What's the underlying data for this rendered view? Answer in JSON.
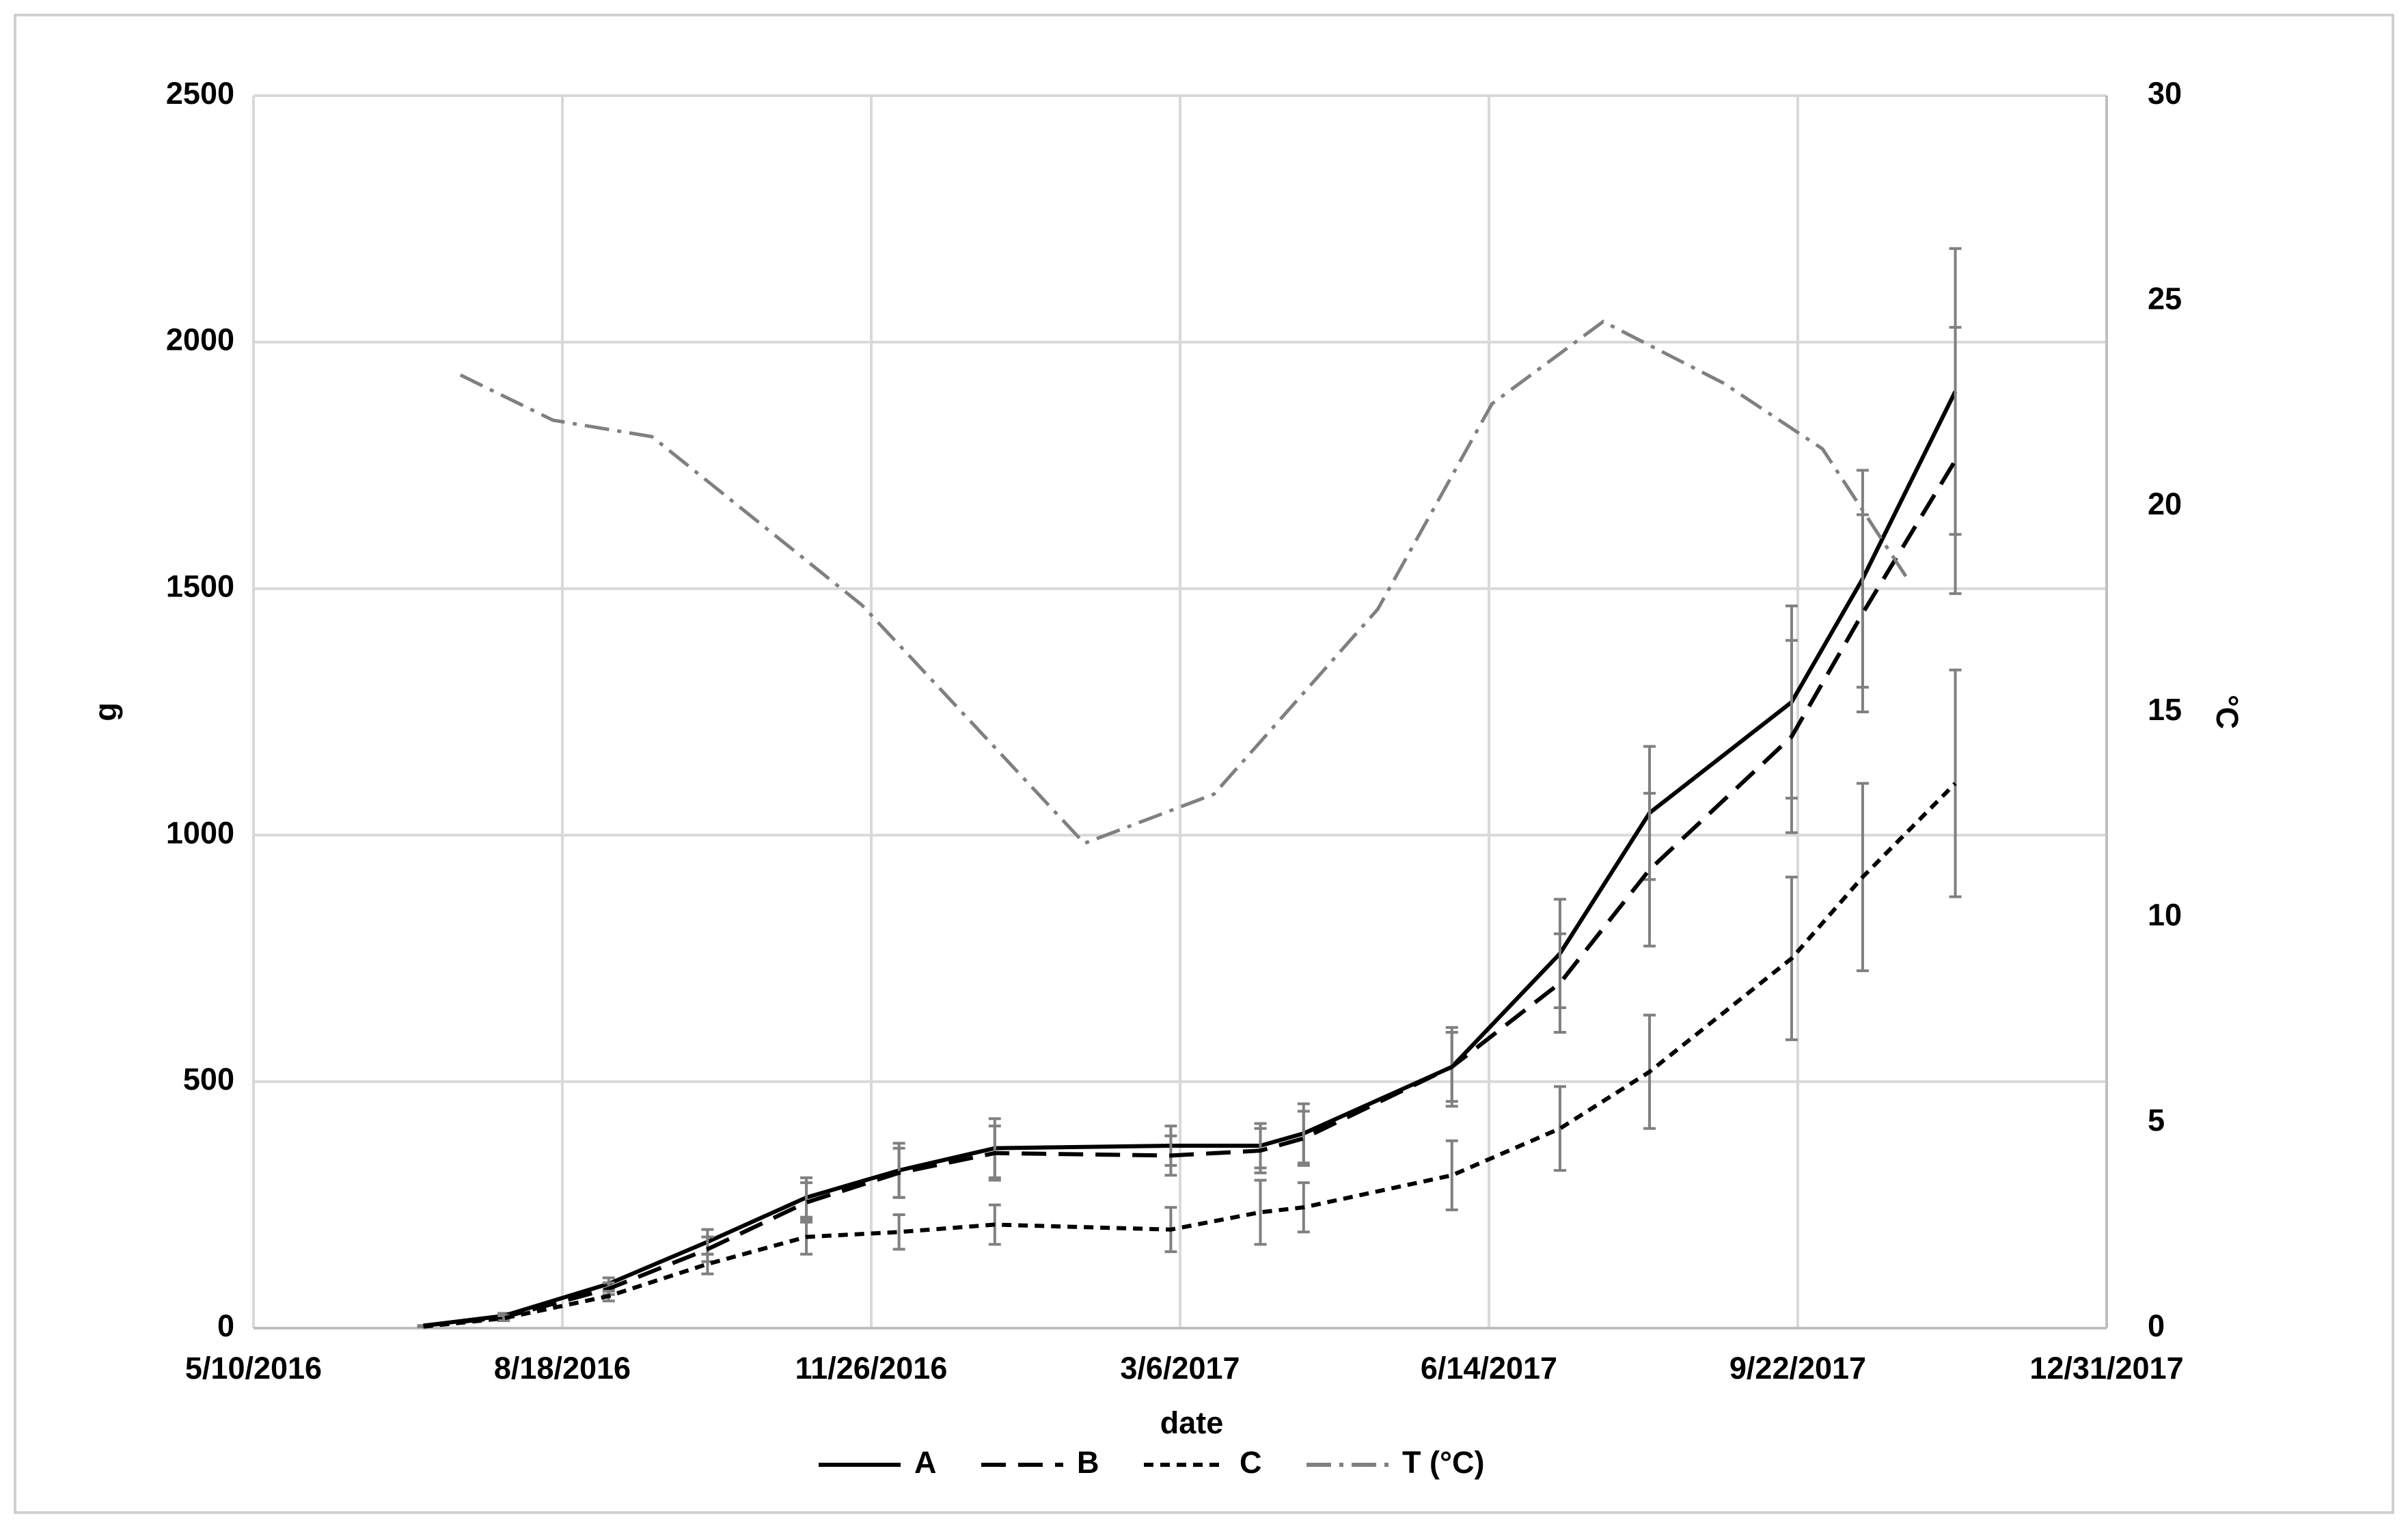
{
  "chart_data": {
    "type": "line",
    "x_label": "date",
    "y_label": "g",
    "y2_label": "°C",
    "x": [
      "7/4/2016",
      "7/30/2016",
      "9/2/2016",
      "10/4/2016",
      "11/5/2016",
      "12/5/2016",
      "1/5/2017",
      "3/3/2017",
      "4/1/2017",
      "4/15/2017",
      "6/2/2017",
      "7/7/2017",
      "8/5/2017",
      "9/20/2017",
      "10/13/2017",
      "11/12/2017"
    ],
    "series": [
      {
        "name": "A",
        "color": "#000000",
        "dash": "solid",
        "values": [
          5,
          25,
          90,
          175,
          265,
          320,
          365,
          370,
          370,
          395,
          530,
          760,
          1045,
          1270,
          1520,
          1900
        ],
        "errors": [
          0,
          5,
          12,
          25,
          40,
          55,
          60,
          40,
          45,
          60,
          80,
          110,
          135,
          195,
          220,
          290
        ]
      },
      {
        "name": "B",
        "color": "#000000",
        "dash": "long",
        "values": [
          5,
          22,
          80,
          160,
          255,
          315,
          355,
          350,
          360,
          385,
          530,
          700,
          930,
          1200,
          1450,
          1760
        ],
        "errors": [
          0,
          5,
          12,
          25,
          40,
          50,
          55,
          40,
          45,
          55,
          70,
          100,
          155,
          195,
          200,
          270
        ]
      },
      {
        "name": "C",
        "color": "#000000",
        "dash": "short",
        "values": [
          3,
          20,
          65,
          130,
          185,
          195,
          210,
          200,
          235,
          245,
          310,
          405,
          520,
          750,
          915,
          1105
        ],
        "errors": [
          0,
          5,
          10,
          20,
          35,
          35,
          40,
          45,
          65,
          50,
          70,
          85,
          115,
          165,
          190,
          230
        ]
      },
      {
        "name": "T (°C)",
        "color": "#808080",
        "dash": "dashdot",
        "axis": "y2",
        "x": [
          "7/16/2016",
          "8/15/2016",
          "9/16/2016",
          "11/23/2016",
          "2/3/2017",
          "3/17/2017",
          "5/9/2017",
          "6/15/2017",
          "7/21/2017",
          "8/29/2017",
          "9/30/2017",
          "10/27/2017"
        ],
        "values": [
          23.2,
          22.1,
          21.7,
          17.6,
          11.8,
          13.0,
          17.5,
          22.5,
          24.5,
          23.0,
          21.4,
          18.3
        ]
      }
    ],
    "error_color": "#808080",
    "xlim": [
      "5/10/2016",
      "12/31/2017"
    ],
    "xticks": [
      "5/10/2016",
      "8/18/2016",
      "11/26/2016",
      "3/6/2017",
      "6/14/2017",
      "9/22/2017",
      "12/31/2017"
    ],
    "ylim": [
      0,
      2500
    ],
    "yticks": [
      0,
      500,
      1000,
      1500,
      2000,
      2500
    ],
    "y2lim": [
      0,
      30
    ],
    "y2ticks": [
      0,
      5,
      10,
      15,
      20,
      25,
      30
    ],
    "grid": true,
    "legend": "bottom"
  }
}
